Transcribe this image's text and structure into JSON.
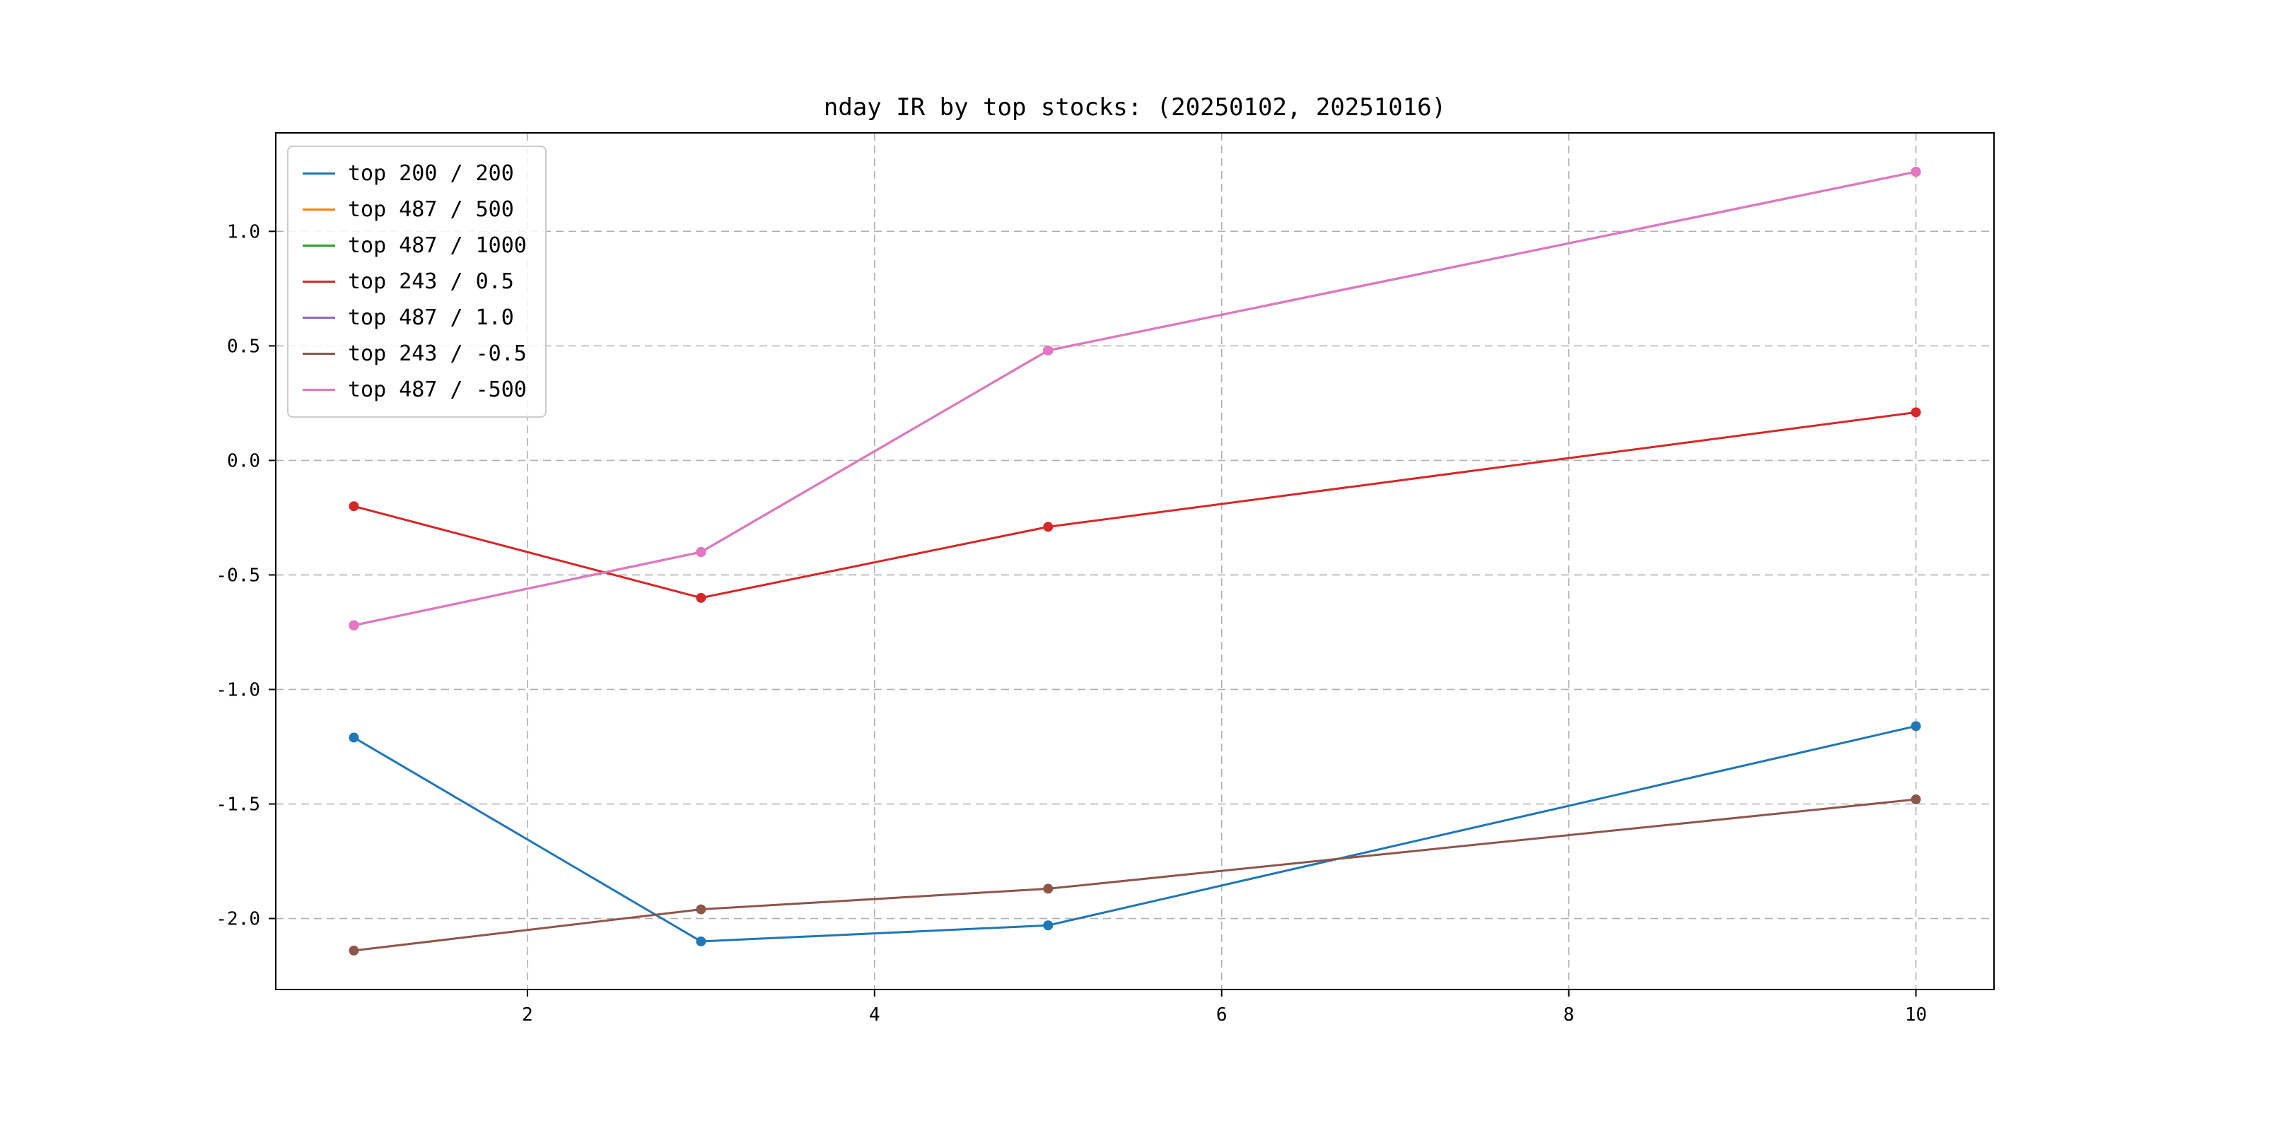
{
  "figure": {
    "background": "#ffffff",
    "frame_color": "#000000",
    "grid_color": "#b0b0b0",
    "tick_label_color": "#000000"
  },
  "chart_data": {
    "type": "line",
    "title": "nday IR by top stocks: (20250102, 20251016)",
    "xlabel": "",
    "ylabel": "",
    "x": [
      1,
      3,
      5,
      10
    ],
    "series": [
      {
        "name": "top 200 / 200",
        "color": "#1f77b4",
        "values": [
          -1.21,
          -2.1,
          -2.03,
          -1.16
        ]
      },
      {
        "name": "top 487 / 500",
        "color": "#ff7f0e",
        "values": [
          -0.72,
          -0.4,
          0.48,
          1.26
        ]
      },
      {
        "name": "top 487 / 1000",
        "color": "#2ca02c",
        "values": [
          -0.72,
          -0.4,
          0.48,
          1.26
        ]
      },
      {
        "name": "top 243 / 0.5",
        "color": "#d62728",
        "values": [
          -0.2,
          -0.6,
          -0.29,
          0.21
        ]
      },
      {
        "name": "top 487 / 1.0",
        "color": "#9467bd",
        "values": [
          -0.72,
          -0.4,
          0.48,
          1.26
        ]
      },
      {
        "name": "top 243 / -0.5",
        "color": "#8c564b",
        "values": [
          -2.14,
          -1.96,
          -1.87,
          -1.48
        ]
      },
      {
        "name": "top 487 / -500",
        "color": "#e377c2",
        "values": [
          -0.72,
          -0.4,
          0.48,
          1.26
        ]
      }
    ],
    "xlim": [
      0.55,
      10.45
    ],
    "ylim": [
      -2.31,
      1.43
    ],
    "xticks": [
      2,
      4,
      6,
      8,
      10
    ],
    "xtick_labels": [
      "2",
      "4",
      "6",
      "8",
      "10"
    ],
    "yticks": [
      1.0,
      0.5,
      0.0,
      -0.5,
      -1.0,
      -1.5,
      -2.0
    ],
    "ytick_labels": [
      "1.0",
      "0.5",
      "0.0",
      "-0.5",
      "-1.0",
      "-1.5",
      "-2.0"
    ],
    "grid": true,
    "grid_style": "dashed",
    "legend_position": "upper left",
    "marker": "o"
  }
}
